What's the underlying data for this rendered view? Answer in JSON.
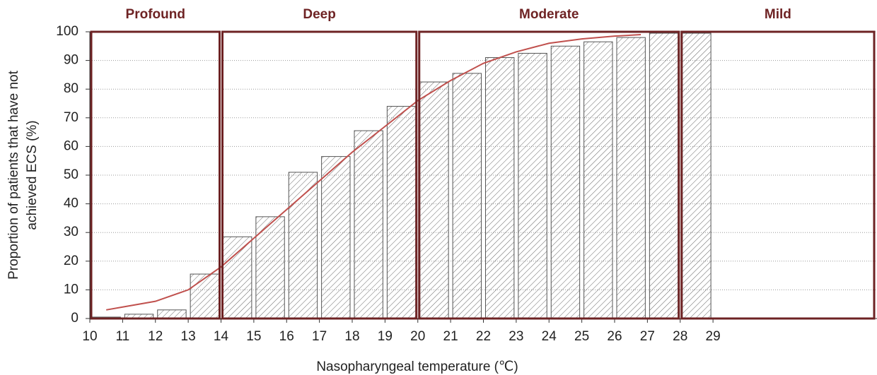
{
  "chart_data": {
    "type": "histogram",
    "xlabel": "Nasopharyngeal temperature (℃)",
    "ylabel": [
      "Proportion of patients that have not",
      "achieved ECS (%)"
    ],
    "bins": [
      10,
      11,
      12,
      13,
      14,
      15,
      16,
      17,
      18,
      19,
      20,
      21,
      22,
      23,
      24,
      25,
      26,
      27,
      28,
      29
    ],
    "values": [
      0.5,
      1.5,
      3,
      15.5,
      28.5,
      35.5,
      51,
      56.5,
      65.5,
      74,
      82.5,
      85.5,
      91,
      92.5,
      95,
      96.5,
      98,
      99.5,
      99.5
    ],
    "bar_color": "#555555",
    "line": {
      "color": "#c0504d",
      "x": [
        10.5,
        11,
        12,
        13,
        14,
        15,
        16,
        17,
        18,
        19,
        20,
        21,
        22,
        23,
        24,
        25,
        26,
        26.8
      ],
      "values": [
        3,
        4,
        6,
        10,
        18,
        28,
        38,
        48,
        58,
        67,
        76,
        83,
        89,
        93,
        96,
        97.5,
        98.5,
        99
      ]
    },
    "regions": [
      {
        "label": "Profound",
        "start": 10,
        "end": 14
      },
      {
        "label": "Deep",
        "start": 14,
        "end": 20
      },
      {
        "label": "Moderate",
        "start": 20,
        "end": 28
      },
      {
        "label": "Mild",
        "start": 28,
        "end": 34
      }
    ],
    "region_color": "#6e2324",
    "xlim": [
      10,
      34
    ],
    "ylim": [
      0,
      100
    ],
    "xticks": [
      10,
      11,
      12,
      13,
      14,
      15,
      16,
      17,
      18,
      19,
      20,
      21,
      22,
      23,
      24,
      25,
      26,
      27,
      28,
      29
    ],
    "yticks": [
      0,
      10,
      20,
      30,
      40,
      50,
      60,
      70,
      80,
      90,
      100
    ],
    "grid": true
  }
}
